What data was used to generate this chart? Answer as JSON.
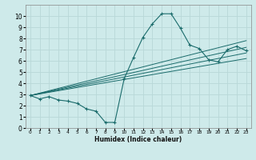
{
  "title": "",
  "xlabel": "Humidex (Indice chaleur)",
  "ylabel": "",
  "bg_color": "#ceeaea",
  "grid_color": "#b8d8d8",
  "line_color": "#1a6b6b",
  "xlim": [
    -0.5,
    23.5
  ],
  "ylim": [
    0,
    11
  ],
  "xticks": [
    0,
    1,
    2,
    3,
    4,
    5,
    6,
    7,
    8,
    9,
    10,
    11,
    12,
    13,
    14,
    15,
    16,
    17,
    18,
    19,
    20,
    21,
    22,
    23
  ],
  "yticks": [
    0,
    1,
    2,
    3,
    4,
    5,
    6,
    7,
    8,
    9,
    10
  ],
  "curve1_x": [
    0,
    1,
    2,
    3,
    4,
    5,
    6,
    7,
    8,
    9,
    10,
    11,
    12,
    13,
    14,
    15,
    16,
    17,
    18,
    19,
    20,
    21,
    22,
    23
  ],
  "curve1_y": [
    2.9,
    2.6,
    2.8,
    2.5,
    2.4,
    2.2,
    1.7,
    1.5,
    0.5,
    0.5,
    4.4,
    6.3,
    8.1,
    9.3,
    10.2,
    10.2,
    8.9,
    7.4,
    7.1,
    6.1,
    5.9,
    7.0,
    7.3,
    6.9
  ],
  "line1_x": [
    0,
    23
  ],
  "line1_y": [
    2.9,
    7.8
  ],
  "line2_x": [
    0,
    23
  ],
  "line2_y": [
    2.9,
    7.2
  ],
  "line3_x": [
    0,
    23
  ],
  "line3_y": [
    2.9,
    6.7
  ],
  "line4_x": [
    0,
    23
  ],
  "line4_y": [
    2.9,
    6.2
  ]
}
